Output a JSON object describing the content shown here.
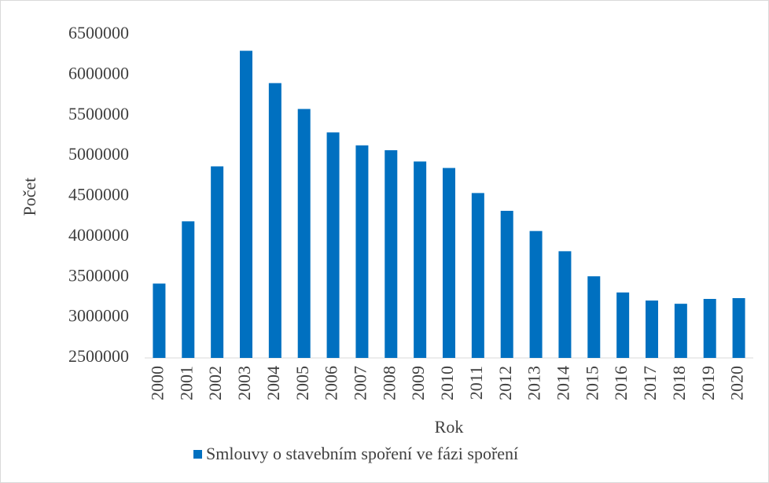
{
  "chart_data": {
    "type": "bar",
    "x_label": "Rok",
    "y_label": "Počet",
    "categories": [
      "2000",
      "2001",
      "2002",
      "2003",
      "2004",
      "2005",
      "2006",
      "2007",
      "2008",
      "2009",
      "2010",
      "2011",
      "2012",
      "2013",
      "2014",
      "2015",
      "2016",
      "2017",
      "2018",
      "2019",
      "2020"
    ],
    "series": [
      {
        "name": "Smlouvy o stavebním spoření ve fázi spoření",
        "color": "#0070c0",
        "values": [
          3420000,
          4190000,
          4870000,
          6300000,
          5900000,
          5580000,
          5290000,
          5130000,
          5070000,
          4930000,
          4850000,
          4540000,
          4320000,
          4070000,
          3820000,
          3510000,
          3310000,
          3210000,
          3170000,
          3230000,
          3240000
        ]
      }
    ],
    "ylim": [
      2500000,
      6500000
    ],
    "yticks": [
      2500000,
      3000000,
      3500000,
      4000000,
      4500000,
      5000000,
      5500000,
      6000000,
      6500000
    ],
    "legend": "bottom"
  }
}
